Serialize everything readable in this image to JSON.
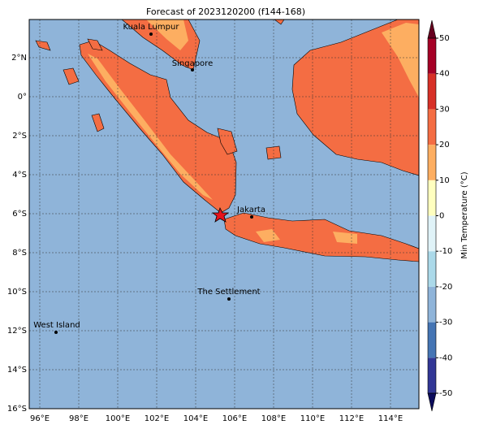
{
  "title": "Forecast of 2023120200 (f144-168)",
  "lon_ticks": [
    "96°E",
    "98°E",
    "100°E",
    "102°E",
    "104°E",
    "106°E",
    "108°E",
    "110°E",
    "112°E",
    "114°E"
  ],
  "lat_ticks": [
    "2°N",
    "0°",
    "2°S",
    "4°S",
    "6°S",
    "8°S",
    "10°S",
    "12°S",
    "14°S",
    "16°S"
  ],
  "places": [
    {
      "label": "Kuala Lumpur"
    },
    {
      "label": "Singapore"
    },
    {
      "label": "Jakarta"
    },
    {
      "label": "The Settlement"
    },
    {
      "label": "West Island"
    }
  ],
  "colorbar": {
    "label": "Min Temperature (°C)",
    "ticks": [
      -50,
      -40,
      -30,
      -20,
      -10,
      0,
      10,
      20,
      30,
      40,
      50
    ]
  }
}
